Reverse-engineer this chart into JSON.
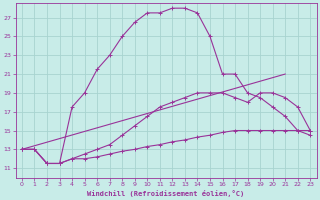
{
  "xlabel": "Windchill (Refroidissement éolien,°C)",
  "bg_color": "#c8ece8",
  "grid_color": "#a8d4d0",
  "line_color": "#993399",
  "x_ticks": [
    0,
    1,
    2,
    3,
    4,
    5,
    6,
    7,
    8,
    9,
    10,
    11,
    12,
    13,
    14,
    15,
    16,
    17,
    18,
    19,
    20,
    21,
    22,
    23
  ],
  "y_ticks": [
    11,
    13,
    15,
    17,
    19,
    21,
    23,
    25,
    27
  ],
  "xlim": [
    -0.5,
    23.5
  ],
  "ylim": [
    10.0,
    28.5
  ],
  "curve1_x": [
    0,
    1,
    2,
    3,
    4,
    5,
    6,
    7,
    8,
    9,
    10,
    11,
    12,
    13,
    14,
    15,
    16,
    17,
    18,
    19,
    20,
    21,
    22,
    23
  ],
  "curve1_y": [
    13.0,
    13.0,
    11.5,
    11.5,
    17.5,
    19.0,
    21.5,
    23.0,
    25.0,
    26.5,
    27.5,
    27.5,
    28.0,
    28.0,
    27.5,
    25.0,
    21.0,
    21.0,
    19.0,
    18.5,
    17.5,
    16.5,
    15.0,
    14.5
  ],
  "curve2_x": [
    0,
    1,
    2,
    3,
    4,
    5,
    6,
    7,
    8,
    9,
    10,
    11,
    12,
    13,
    14,
    15,
    16,
    17,
    18,
    19,
    20,
    21,
    22,
    23
  ],
  "curve2_y": [
    13.0,
    13.0,
    11.5,
    11.5,
    12.0,
    12.5,
    13.0,
    13.5,
    14.5,
    15.5,
    16.5,
    17.5,
    18.0,
    18.5,
    19.0,
    19.0,
    19.0,
    18.5,
    18.0,
    19.0,
    19.0,
    18.5,
    17.5,
    15.0
  ],
  "curve3_x": [
    0,
    1,
    2,
    3,
    4,
    5,
    6,
    7,
    8,
    9,
    10,
    11,
    12,
    13,
    14,
    15,
    16,
    17,
    18,
    19,
    20,
    21,
    22,
    23
  ],
  "curve3_y": [
    13.0,
    13.0,
    11.5,
    11.5,
    12.0,
    12.0,
    12.2,
    12.5,
    12.8,
    13.0,
    13.3,
    13.5,
    13.8,
    14.0,
    14.3,
    14.5,
    14.8,
    15.0,
    15.0,
    15.0,
    15.0,
    15.0,
    15.0,
    15.0
  ],
  "line_x": [
    0,
    21
  ],
  "line_y": [
    13.0,
    21.0
  ]
}
